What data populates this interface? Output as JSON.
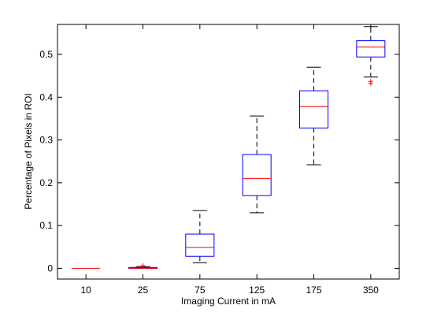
{
  "chart_data": {
    "type": "box",
    "xlabel": "Imaging Current in mA",
    "ylabel": "Percentage of Pixels in ROI",
    "categories": [
      "10",
      "25",
      "75",
      "125",
      "175",
      "350"
    ],
    "ylim": [
      -0.025,
      0.57
    ],
    "yticks": [
      0,
      0.1,
      0.2,
      0.3,
      0.4,
      0.5
    ],
    "ytick_labels": [
      "0",
      "0.1",
      "0.2",
      "0.3",
      "0.4",
      "0.5"
    ],
    "grid": false,
    "boxes": [
      {
        "category": "10",
        "whisker_low": 0,
        "q1": 0,
        "median": 0,
        "q3": 0,
        "whisker_high": 0,
        "outliers": []
      },
      {
        "category": "25",
        "whisker_low": 0,
        "q1": 0,
        "median": 0,
        "q3": 0.002,
        "whisker_high": 0.004,
        "outliers": [
          0.006
        ]
      },
      {
        "category": "75",
        "whisker_low": 0.013,
        "q1": 0.028,
        "median": 0.049,
        "q3": 0.08,
        "whisker_high": 0.135,
        "outliers": []
      },
      {
        "category": "125",
        "whisker_low": 0.13,
        "q1": 0.17,
        "median": 0.21,
        "q3": 0.266,
        "whisker_high": 0.356,
        "outliers": []
      },
      {
        "category": "175",
        "whisker_low": 0.242,
        "q1": 0.328,
        "median": 0.378,
        "q3": 0.415,
        "whisker_high": 0.47,
        "outliers": []
      },
      {
        "category": "350",
        "whisker_low": 0.447,
        "q1": 0.494,
        "median": 0.517,
        "q3": 0.532,
        "whisker_high": 0.565,
        "outliers": [
          0.437,
          0.432
        ]
      }
    ],
    "colors": {
      "box": "#0000ff",
      "median": "#ff0000",
      "outlier": "#ff0000",
      "whisker": "#000000",
      "axes": "#000000"
    }
  }
}
